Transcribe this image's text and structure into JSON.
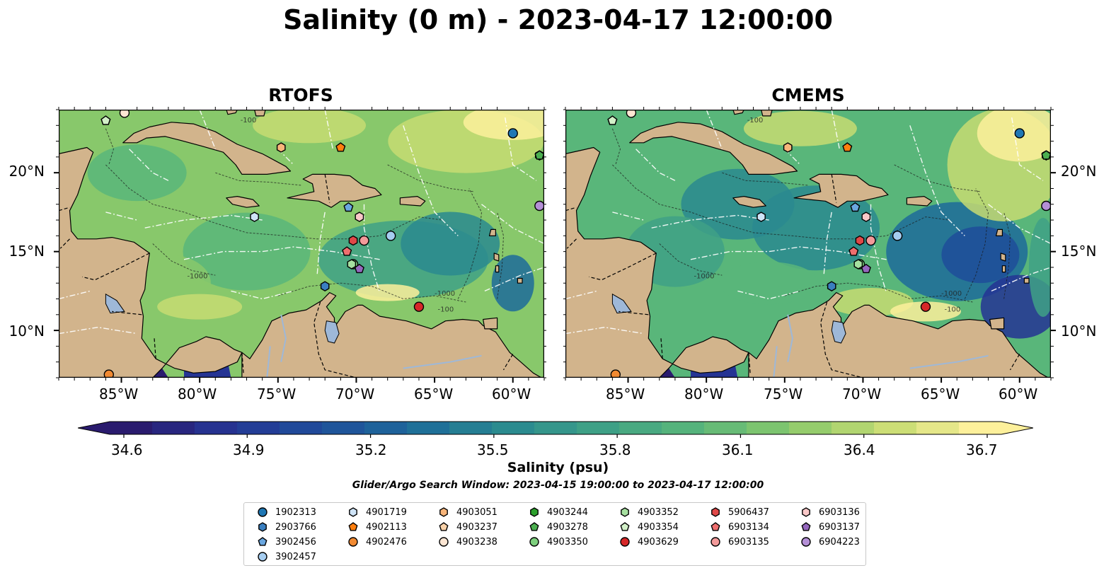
{
  "title": "Salinity (0 m) - 2023-04-17 12:00:00",
  "panels": [
    {
      "title": "RTOFS",
      "variant": "rtofs"
    },
    {
      "title": "CMEMS",
      "variant": "cmems"
    }
  ],
  "axes": {
    "lon_ticks": [
      "85°W",
      "80°W",
      "75°W",
      "70°W",
      "65°W",
      "60°W"
    ],
    "lon_values": [
      -85,
      -80,
      -75,
      -70,
      -65,
      -60
    ],
    "lat_ticks": [
      "20°N",
      "15°N",
      "10°N"
    ],
    "lat_values": [
      20,
      15,
      10
    ],
    "lon_range": [
      -89,
      -58
    ],
    "lat_range": [
      7,
      24
    ]
  },
  "colorbar": {
    "ticks": [
      "34.6",
      "34.9",
      "35.2",
      "35.5",
      "35.8",
      "36.1",
      "36.4",
      "36.7"
    ],
    "range": [
      34.6,
      36.7
    ],
    "extend": "both",
    "label": "Salinity (psu)"
  },
  "search_window": "Glider/Argo Search Window: 2023-04-15 19:00:00 to 2023-04-17 12:00:00",
  "colors": {
    "land": "#d2b48c",
    "river": "#9eb8d8",
    "cmap": [
      "#2a1b6e",
      "#253494",
      "#1f4e9a",
      "#1d6b9a",
      "#2a8a8f",
      "#3fa186",
      "#59b67a",
      "#88c86b",
      "#c7dc72",
      "#fdf09b"
    ]
  },
  "floats": [
    {
      "id": "1902313",
      "color": "#1f77b4",
      "marker": "circle",
      "lon": -60.0,
      "lat": 22.5
    },
    {
      "id": "2903766",
      "color": "#3a7fc0",
      "marker": "hexagon",
      "lon": -72.0,
      "lat": 12.8
    },
    {
      "id": "3902456",
      "color": "#6aa7e0",
      "marker": "pentagon",
      "lon": -70.5,
      "lat": 17.8
    },
    {
      "id": "3902457",
      "color": "#a6cdf0",
      "marker": "circle",
      "lon": -67.8,
      "lat": 16.0
    },
    {
      "id": "4901719",
      "color": "#cfe4f7",
      "marker": "hexagon",
      "lon": -76.5,
      "lat": 17.2
    },
    {
      "id": "4902113",
      "color": "#ff7f0e",
      "marker": "pentagon",
      "lon": -71.0,
      "lat": 21.6
    },
    {
      "id": "4902476",
      "color": "#f28a32",
      "marker": "circle",
      "lon": -85.8,
      "lat": 7.2
    },
    {
      "id": "4903051",
      "color": "#f8b57a",
      "marker": "hexagon",
      "lon": -74.8,
      "lat": 21.6
    },
    {
      "id": "4903237",
      "color": "#fbd3aa",
      "marker": "pentagon",
      "lon": -86.0,
      "lat": 23.3
    },
    {
      "id": "4903238",
      "color": "#fde6d3",
      "marker": "circle",
      "lon": -84.8,
      "lat": 23.8
    },
    {
      "id": "4903244",
      "color": "#2ca02c",
      "marker": "hexagon",
      "lon": -58.3,
      "lat": 21.1
    },
    {
      "id": "4903278",
      "color": "#4caf50",
      "marker": "pentagon",
      "lon": -58.3,
      "lat": 21.1
    },
    {
      "id": "4903350",
      "color": "#7dcf7d",
      "marker": "circle",
      "lon": -70.2,
      "lat": 14.2
    },
    {
      "id": "4903352",
      "color": "#a6e0a0",
      "marker": "hexagon",
      "lon": -70.3,
      "lat": 14.2
    },
    {
      "id": "4903354",
      "color": "#d2f0c8",
      "marker": "pentagon",
      "lon": -86.0,
      "lat": 23.3
    },
    {
      "id": "4903629",
      "color": "#d62728",
      "marker": "circle",
      "lon": -66.0,
      "lat": 11.5
    },
    {
      "id": "5906437",
      "color": "#e04848",
      "marker": "hexagon",
      "lon": -70.2,
      "lat": 15.7
    },
    {
      "id": "6903134",
      "color": "#ee6e6e",
      "marker": "pentagon",
      "lon": -70.6,
      "lat": 15.0
    },
    {
      "id": "6903135",
      "color": "#f39a9a",
      "marker": "circle",
      "lon": -69.5,
      "lat": 15.7
    },
    {
      "id": "6903136",
      "color": "#fac8c8",
      "marker": "hexagon",
      "lon": -69.8,
      "lat": 17.2
    },
    {
      "id": "6903137",
      "color": "#9467bd",
      "marker": "pentagon",
      "lon": -69.8,
      "lat": 13.9
    },
    {
      "id": "6904223",
      "color": "#b48fd6",
      "marker": "circle",
      "lon": -58.3,
      "lat": 17.9
    }
  ]
}
